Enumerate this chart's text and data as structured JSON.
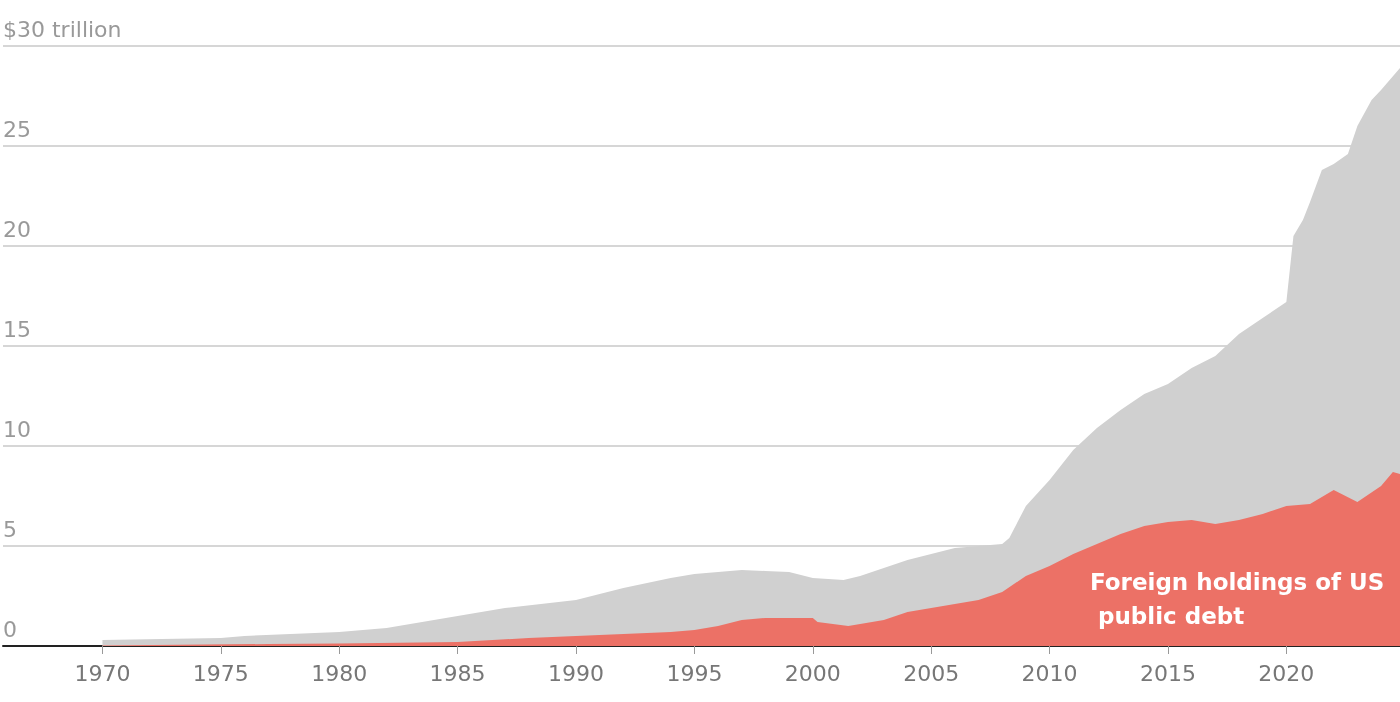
{
  "chart_data": {
    "type": "area",
    "xlim": [
      1965.8,
      2024.8
    ],
    "xticks": [
      1970,
      1975,
      1980,
      1985,
      1990,
      1995,
      2000,
      2005,
      2010,
      2015,
      2020
    ],
    "ylim": [
      0,
      30
    ],
    "yticks": [
      {
        "value": 0,
        "label": "0"
      },
      {
        "value": 5,
        "label": "5"
      },
      {
        "value": 10,
        "label": "10"
      },
      {
        "value": 15,
        "label": "15"
      },
      {
        "value": 20,
        "label": "20"
      },
      {
        "value": 25,
        "label": "25"
      },
      {
        "value": 30,
        "label": "$30 trillion"
      }
    ],
    "grid": "y",
    "legend": false,
    "marker": "none",
    "series": [
      {
        "color": "#d0d0d0",
        "x": [
          1970,
          1975,
          1976,
          1980,
          1982,
          1985,
          1987,
          1990,
          1992,
          1994,
          1995,
          1997,
          1998,
          1999,
          2000,
          2001.3,
          2002,
          2003,
          2004,
          2005,
          2006,
          2007,
          2008,
          2008.3,
          2009,
          2010,
          2011,
          2012,
          2013,
          2014,
          2015,
          2016,
          2017,
          2018,
          2019,
          2020,
          2020.3,
          2020.7,
          2021,
          2021.5,
          2022,
          2022.6,
          2023,
          2023.6,
          2024,
          2024.8
        ],
        "values": [
          0.3,
          0.4,
          0.5,
          0.7,
          0.9,
          1.5,
          1.9,
          2.3,
          2.9,
          3.4,
          3.6,
          3.8,
          3.75,
          3.7,
          3.4,
          3.3,
          3.5,
          3.9,
          4.3,
          4.6,
          4.9,
          5.0,
          5.1,
          5.4,
          7.0,
          8.3,
          9.8,
          10.9,
          11.8,
          12.6,
          13.1,
          13.9,
          14.5,
          15.6,
          16.4,
          17.2,
          20.5,
          21.3,
          22.2,
          23.8,
          24.1,
          24.6,
          26.0,
          27.3,
          27.8,
          28.9
        ]
      },
      {
        "name": "Foreign holdings of US public debt",
        "color": "#ec7166",
        "x": [
          1970,
          1977,
          1980,
          1985,
          1988,
          1990,
          1994,
          1995,
          1996,
          1997,
          1998,
          1999,
          2000,
          2000.2,
          2001.5,
          2003,
          2004,
          2005,
          2006,
          2007,
          2008,
          2009,
          2010,
          2011,
          2012,
          2013,
          2014,
          2015,
          2016,
          2017,
          2018,
          2019,
          2020,
          2021,
          2022,
          2023,
          2023.5,
          2024,
          2024.5,
          2024.8
        ],
        "values": [
          0.02,
          0.1,
          0.12,
          0.2,
          0.4,
          0.5,
          0.7,
          0.8,
          1.0,
          1.3,
          1.4,
          1.4,
          1.4,
          1.2,
          1.0,
          1.3,
          1.7,
          1.9,
          2.1,
          2.3,
          2.7,
          3.5,
          4.0,
          4.6,
          5.1,
          5.6,
          6.0,
          6.2,
          6.3,
          6.1,
          6.3,
          6.6,
          7.0,
          7.1,
          7.8,
          7.2,
          7.6,
          8.0,
          8.7,
          8.6
        ]
      }
    ]
  }
}
